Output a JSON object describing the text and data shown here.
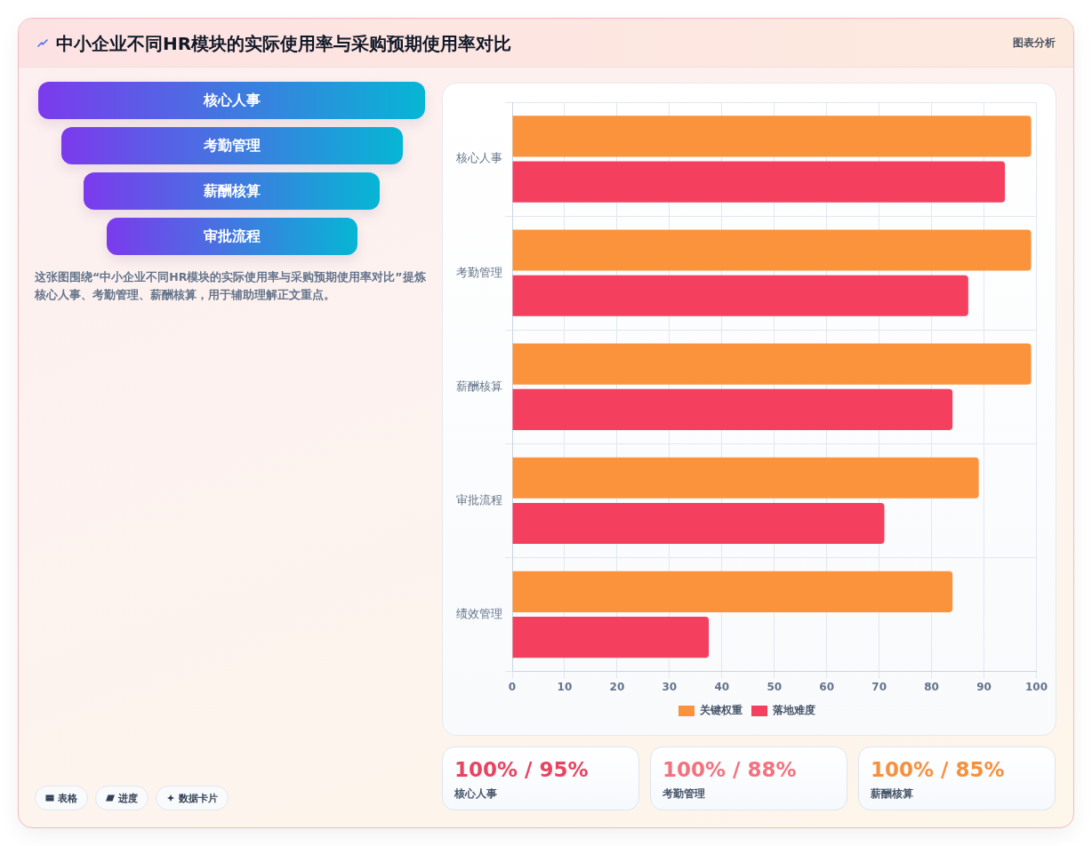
{
  "chart_data": [
    {
      "type": "other",
      "title": "中小企业不同HR模块的实际使用率与采购预期使用率对比",
      "categories": [
        "核心人事",
        "考勤管理",
        "薪酬核算",
        "审批流程"
      ],
      "annotations": [
        "这张图围绕“中小企业不同HR模块的实际使用率与采购预期使用率对比”提炼核心人事、考勤管理、薪酬核算，用于辅助理解正文重点。",
        "表格",
        "进度",
        "数据卡片"
      ]
    },
    {
      "type": "bar",
      "orientation": "horizontal",
      "annotations": [
        "图表分析"
      ],
      "categories": [
        "核心人事",
        "考勤管理",
        "薪酬核算",
        "审批流程",
        "绩效管理"
      ],
      "series": [
        {
          "name": "关键权重",
          "color": "#fb923c",
          "values": [
            99,
            99,
            99,
            89,
            84
          ]
        },
        {
          "name": "落地难度",
          "color": "#f43f5e",
          "values": [
            94,
            87,
            84,
            71,
            37.5
          ]
        }
      ],
      "xlim": [
        0,
        100
      ],
      "xticks": [
        0,
        10,
        20,
        30,
        40,
        50,
        60,
        70,
        80,
        90,
        100
      ],
      "grid": true,
      "legend": "bottom"
    },
    {
      "type": "other",
      "categories": [
        "核心人事",
        "考勤管理",
        "薪酬核算"
      ],
      "annotations": [
        "100% / 95%",
        "100% / 88%",
        "100% / 85%"
      ]
    }
  ]
}
